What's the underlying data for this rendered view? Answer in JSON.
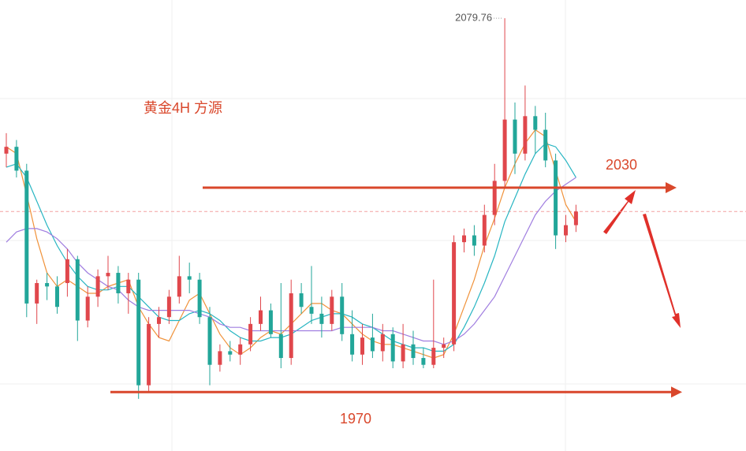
{
  "chart_data": {
    "type": "candlestick",
    "title": "黄金4H 方源",
    "candles": {
      "open": [
        2040,
        2042,
        2035,
        1996,
        2002,
        2001,
        2002,
        2009,
        1991,
        1998,
        2004,
        2005,
        1999,
        2003,
        1972,
        1990,
        1992,
        1998,
        2004,
        2003,
        1992,
        1978,
        1982,
        1981,
        1984,
        1990,
        1994,
        1987,
        1980,
        1999,
        1995,
        1993,
        1990,
        1998,
        1987,
        1981,
        1986,
        1982,
        1987,
        1979,
        1984,
        1980,
        1978,
        1983,
        1984,
        2014,
        2016,
        2013,
        2022,
        2032,
        2050,
        2040,
        2051,
        2047,
        2038,
        2016,
        2019
      ],
      "high": [
        2046,
        2044,
        2037,
        2003,
        2005,
        2004,
        2012,
        2010,
        2001,
        2006,
        2010,
        2007,
        2005,
        2005,
        1992,
        1995,
        2000,
        2010,
        2008,
        2005,
        1995,
        1984,
        1985,
        1986,
        1992,
        1998,
        1996,
        2002,
        2003,
        2002,
        2007,
        1998,
        2000,
        2002,
        1994,
        1990,
        1993,
        1990,
        1989,
        1990,
        1988,
        1983,
        2003,
        1986,
        2016,
        2018,
        2019,
        2025,
        2037,
        2079.76,
        2055,
        2060,
        2054,
        2052,
        2040,
        2022,
        2025
      ],
      "low": [
        2036,
        2033,
        1992,
        1990,
        1997,
        1993,
        1998,
        1985,
        1989,
        1995,
        2000,
        1996,
        1993,
        1968,
        1970,
        1986,
        1990,
        1996,
        1999,
        1990,
        1972,
        1976,
        1979,
        1978,
        1982,
        1988,
        1986,
        1977,
        1978,
        1993,
        1990,
        1986,
        1988,
        1985,
        1979,
        1978,
        1980,
        1979,
        1977,
        1977,
        1978,
        1977,
        1977,
        1980,
        1982,
        2011,
        2010,
        2011,
        2019,
        2030,
        2034,
        2038,
        2040,
        2036,
        2012,
        2014,
        2017
      ],
      "close": [
        2042,
        2035,
        1996,
        2002,
        2001,
        1995,
        2009,
        1991,
        1998,
        2004,
        2005,
        1999,
        2003,
        1972,
        1990,
        1992,
        1998,
        2004,
        2003,
        1992,
        1978,
        1982,
        1981,
        1984,
        1990,
        1994,
        1987,
        1980,
        1999,
        1995,
        1993,
        1990,
        1998,
        1987,
        1981,
        1986,
        1982,
        1987,
        1979,
        1984,
        1980,
        1978,
        1983,
        1984,
        2014,
        2016,
        2013,
        2022,
        2032,
        2050,
        2040,
        2051,
        2047,
        2038,
        2016,
        2019,
        2023
      ],
      "up_color": "#e0474c",
      "down_color": "#22a699"
    },
    "series": [
      {
        "color": "#f0923a",
        "values": [
          2042,
          2040,
          2028,
          2015,
          2005,
          2001,
          2003,
          2001,
          1999,
          1999,
          2001,
          2002,
          2003,
          1995,
          1990,
          1986,
          1985,
          1991,
          1997,
          1999,
          1993,
          1987,
          1983,
          1981,
          1983,
          1986,
          1988,
          1987,
          1990,
          1993,
          1996,
          1996,
          1994,
          1993,
          1990,
          1987,
          1985,
          1984,
          1984,
          1983,
          1982,
          1981,
          1980,
          1981,
          1987,
          1995,
          2003,
          2013,
          2021,
          2030,
          2037,
          2043,
          2047,
          2045,
          2035,
          2025,
          2020
        ]
      },
      {
        "color": "#27b5c2",
        "values": [
          2036,
          2037,
          2033,
          2026,
          2019,
          2013,
          2008,
          2004,
          2001,
          2000,
          2000,
          2001,
          2001,
          1998,
          1995,
          1992,
          1991,
          1991,
          1993,
          1994,
          1993,
          1991,
          1988,
          1986,
          1985,
          1985,
          1986,
          1986,
          1987,
          1989,
          1991,
          1992,
          1993,
          1993,
          1992,
          1990,
          1989,
          1987,
          1985,
          1984,
          1983,
          1983,
          1982,
          1982,
          1984,
          1989,
          1995,
          2002,
          2010,
          2020,
          2027,
          2034,
          2040,
          2043,
          2042,
          2038,
          2033
        ]
      },
      {
        "color": "#a07ee0",
        "values": [
          2014,
          2017,
          2018,
          2018,
          2017,
          2015,
          2012,
          2008,
          2005,
          2003,
          2001,
          2000,
          1997,
          1995,
          1994,
          1994,
          1994,
          1994,
          1994,
          1993,
          1992,
          1990,
          1989,
          1989,
          1988,
          1988,
          1988,
          1988,
          1988,
          1988,
          1988,
          1988,
          1988,
          1989,
          1989,
          1989,
          1989,
          1988,
          1988,
          1987,
          1986,
          1985,
          1985,
          1984,
          1985,
          1987,
          1990,
          1994,
          1998,
          2004,
          2010,
          2016,
          2022,
          2026,
          2029,
          2031,
          2033
        ]
      }
    ],
    "levels": [
      2030,
      1970
    ],
    "level_color": "#d9472b",
    "ylim": [
      1952.7,
      2085.1
    ]
  }
}
